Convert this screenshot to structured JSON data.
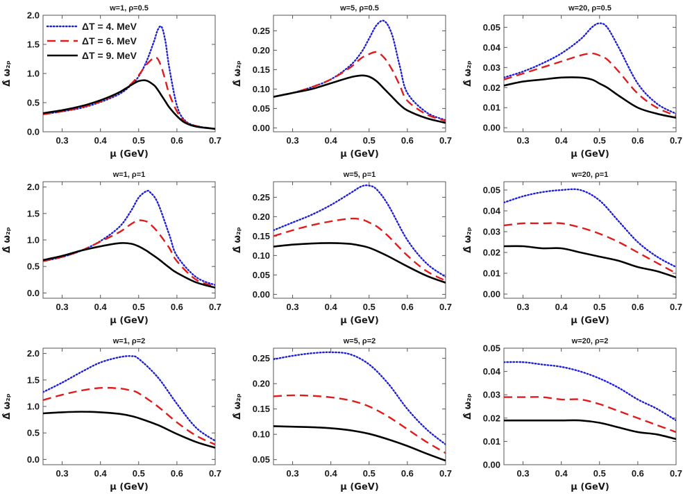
{
  "legend": [
    {
      "label": "ΔT = 4.  MeV",
      "color": "#1f1fd6",
      "style": "dotted"
    },
    {
      "label": "ΔT = 6.  MeV",
      "color": "#e01b1b",
      "style": "dashed"
    },
    {
      "label": "ΔT = 9.  MeV",
      "color": "#000000",
      "style": "solid"
    }
  ],
  "chart_data": [
    {
      "type": "line",
      "title": "w=1, ρ=0.5",
      "xlabel": "μ (GeV)",
      "ylabel": "Δ̂ ω₂ₚ",
      "xlim": [
        0.25,
        0.7
      ],
      "ylim": [
        0,
        2.0
      ],
      "xticks": [
        "0.3",
        "0.4",
        "0.5",
        "0.6",
        "0.7"
      ],
      "yticks": [
        "0.0",
        "0.5",
        "1.0",
        "1.5",
        "2.0"
      ],
      "legend": true,
      "x": [
        0.25,
        0.3,
        0.35,
        0.4,
        0.45,
        0.48,
        0.5,
        0.52,
        0.54,
        0.55,
        0.56,
        0.57,
        0.58,
        0.6,
        0.62,
        0.65,
        0.7
      ],
      "series": [
        {
          "name": "ΔT = 4.  MeV",
          "values": [
            0.3,
            0.35,
            0.41,
            0.51,
            0.65,
            0.8,
            0.95,
            1.2,
            1.55,
            1.75,
            1.8,
            1.55,
            1.1,
            0.45,
            0.2,
            0.1,
            0.05
          ]
        },
        {
          "name": "ΔT = 6.  MeV",
          "values": [
            0.3,
            0.35,
            0.42,
            0.52,
            0.68,
            0.82,
            0.97,
            1.15,
            1.27,
            1.25,
            1.1,
            0.88,
            0.65,
            0.35,
            0.18,
            0.1,
            0.05
          ]
        },
        {
          "name": "ΔT = 9.  MeV",
          "values": [
            0.32,
            0.37,
            0.44,
            0.54,
            0.68,
            0.8,
            0.87,
            0.88,
            0.8,
            0.72,
            0.62,
            0.52,
            0.42,
            0.27,
            0.16,
            0.09,
            0.05
          ]
        }
      ]
    },
    {
      "type": "line",
      "title": "w=5, ρ=0.5",
      "xlabel": "μ (GeV)",
      "ylabel": "Δ̂ ω₂ₚ",
      "xlim": [
        0.25,
        0.7
      ],
      "ylim": [
        -0.01,
        0.29
      ],
      "xticks": [
        "0.3",
        "0.4",
        "0.5",
        "0.6",
        "0.7"
      ],
      "yticks": [
        "0.00",
        "0.05",
        "0.10",
        "0.15",
        "0.20",
        "0.25"
      ],
      "legend": false,
      "x": [
        0.25,
        0.3,
        0.35,
        0.4,
        0.45,
        0.48,
        0.5,
        0.52,
        0.54,
        0.56,
        0.58,
        0.6,
        0.65,
        0.7
      ],
      "series": [
        {
          "name": "ΔT = 4.  MeV",
          "values": [
            0.08,
            0.09,
            0.105,
            0.125,
            0.16,
            0.195,
            0.23,
            0.265,
            0.275,
            0.24,
            0.16,
            0.09,
            0.04,
            0.02
          ]
        },
        {
          "name": "ΔT = 6.  MeV",
          "values": [
            0.08,
            0.09,
            0.105,
            0.125,
            0.155,
            0.18,
            0.19,
            0.195,
            0.18,
            0.15,
            0.11,
            0.07,
            0.035,
            0.018
          ]
        },
        {
          "name": "ΔT = 9.  MeV",
          "values": [
            0.08,
            0.09,
            0.1,
            0.115,
            0.13,
            0.135,
            0.132,
            0.12,
            0.1,
            0.08,
            0.06,
            0.045,
            0.025,
            0.013
          ]
        }
      ]
    },
    {
      "type": "line",
      "title": "w=20, ρ=0.5",
      "xlabel": "μ (GeV)",
      "ylabel": "Δ̂ ω₂ₚ",
      "xlim": [
        0.25,
        0.7
      ],
      "ylim": [
        -0.002,
        0.056
      ],
      "xticks": [
        "0.3",
        "0.4",
        "0.5",
        "0.6",
        "0.7"
      ],
      "yticks": [
        "0.00",
        "0.01",
        "0.02",
        "0.03",
        "0.04",
        "0.05"
      ],
      "legend": false,
      "x": [
        0.25,
        0.3,
        0.35,
        0.4,
        0.45,
        0.48,
        0.5,
        0.52,
        0.55,
        0.6,
        0.65,
        0.7
      ],
      "series": [
        {
          "name": "ΔT = 4.  MeV",
          "values": [
            0.025,
            0.028,
            0.032,
            0.037,
            0.044,
            0.05,
            0.052,
            0.05,
            0.04,
            0.022,
            0.012,
            0.007
          ]
        },
        {
          "name": "ΔT = 6.  MeV",
          "values": [
            0.024,
            0.027,
            0.03,
            0.033,
            0.036,
            0.037,
            0.036,
            0.034,
            0.028,
            0.017,
            0.01,
            0.006
          ]
        },
        {
          "name": "ΔT = 9.  MeV",
          "values": [
            0.021,
            0.023,
            0.024,
            0.025,
            0.025,
            0.024,
            0.022,
            0.02,
            0.016,
            0.01,
            0.007,
            0.005
          ]
        }
      ]
    },
    {
      "type": "line",
      "title": "w=1, ρ=1",
      "xlabel": "μ (GeV)",
      "ylabel": "Δ̂ ω₂ₚ",
      "xlim": [
        0.25,
        0.7
      ],
      "ylim": [
        -0.1,
        2.1
      ],
      "xticks": [
        "0.3",
        "0.4",
        "0.5",
        "0.6",
        "0.7"
      ],
      "yticks": [
        "0.0",
        "0.5",
        "1.0",
        "1.5",
        "2.0"
      ],
      "legend": false,
      "x": [
        0.25,
        0.3,
        0.35,
        0.4,
        0.45,
        0.48,
        0.5,
        0.52,
        0.53,
        0.55,
        0.58,
        0.6,
        0.65,
        0.7
      ],
      "series": [
        {
          "name": "ΔT = 4.  MeV",
          "values": [
            0.6,
            0.68,
            0.8,
            0.98,
            1.25,
            1.55,
            1.8,
            1.92,
            1.9,
            1.7,
            1.1,
            0.7,
            0.3,
            0.15
          ]
        },
        {
          "name": "ΔT = 6.  MeV",
          "values": [
            0.6,
            0.68,
            0.8,
            0.97,
            1.15,
            1.3,
            1.37,
            1.35,
            1.3,
            1.15,
            0.85,
            0.6,
            0.25,
            0.13
          ]
        },
        {
          "name": "ΔT = 9.  MeV",
          "values": [
            0.62,
            0.7,
            0.8,
            0.88,
            0.94,
            0.93,
            0.88,
            0.8,
            0.75,
            0.65,
            0.48,
            0.38,
            0.2,
            0.1
          ]
        }
      ]
    },
    {
      "type": "line",
      "title": "w=5, ρ=1",
      "xlabel": "μ (GeV)",
      "ylabel": "Δ̂ ω₂ₚ",
      "xlim": [
        0.25,
        0.7
      ],
      "ylim": [
        -0.01,
        0.29
      ],
      "xticks": [
        "0.3",
        "0.4",
        "0.5",
        "0.6",
        "0.7"
      ],
      "yticks": [
        "0.00",
        "0.05",
        "0.10",
        "0.15",
        "0.20",
        "0.25"
      ],
      "legend": false,
      "x": [
        0.25,
        0.3,
        0.35,
        0.4,
        0.45,
        0.48,
        0.5,
        0.52,
        0.55,
        0.6,
        0.65,
        0.7
      ],
      "series": [
        {
          "name": "ΔT = 4.  MeV",
          "values": [
            0.165,
            0.185,
            0.205,
            0.23,
            0.26,
            0.278,
            0.28,
            0.27,
            0.23,
            0.14,
            0.08,
            0.045
          ]
        },
        {
          "name": "ΔT = 6.  MeV",
          "values": [
            0.15,
            0.165,
            0.178,
            0.188,
            0.195,
            0.193,
            0.185,
            0.175,
            0.15,
            0.1,
            0.06,
            0.035
          ]
        },
        {
          "name": "ΔT = 9.  MeV",
          "values": [
            0.123,
            0.128,
            0.131,
            0.132,
            0.13,
            0.125,
            0.12,
            0.112,
            0.098,
            0.072,
            0.048,
            0.03
          ]
        }
      ]
    },
    {
      "type": "line",
      "title": "w=20, ρ=1",
      "xlabel": "μ (GeV)",
      "ylabel": "Δ̂ ω₂ₚ",
      "xlim": [
        0.25,
        0.7
      ],
      "ylim": [
        -0.002,
        0.054
      ],
      "xticks": [
        "0.3",
        "0.4",
        "0.5",
        "0.6",
        "0.7"
      ],
      "yticks": [
        "0.00",
        "0.01",
        "0.02",
        "0.03",
        "0.04",
        "0.05"
      ],
      "legend": false,
      "x": [
        0.25,
        0.3,
        0.35,
        0.4,
        0.45,
        0.5,
        0.55,
        0.6,
        0.65,
        0.7
      ],
      "series": [
        {
          "name": "ΔT = 4.  MeV",
          "values": [
            0.044,
            0.047,
            0.049,
            0.05,
            0.05,
            0.045,
            0.035,
            0.025,
            0.018,
            0.013
          ]
        },
        {
          "name": "ΔT = 6.  MeV",
          "values": [
            0.033,
            0.034,
            0.034,
            0.034,
            0.032,
            0.029,
            0.025,
            0.02,
            0.015,
            0.01
          ]
        },
        {
          "name": "ΔT = 9.  MeV",
          "values": [
            0.023,
            0.023,
            0.022,
            0.022,
            0.02,
            0.018,
            0.016,
            0.013,
            0.011,
            0.008
          ]
        }
      ]
    },
    {
      "type": "line",
      "title": "w=1, ρ=2",
      "xlabel": "μ (GeV)",
      "ylabel": "Δ̂ ω₂ₚ",
      "xlim": [
        0.25,
        0.7
      ],
      "ylim": [
        -0.1,
        2.1
      ],
      "xticks": [
        "0.3",
        "0.4",
        "0.5",
        "0.6",
        "0.7"
      ],
      "yticks": [
        "0.0",
        "0.5",
        "1.0",
        "1.5",
        "2.0"
      ],
      "legend": false,
      "x": [
        0.25,
        0.3,
        0.35,
        0.4,
        0.45,
        0.48,
        0.5,
        0.55,
        0.6,
        0.65,
        0.7
      ],
      "series": [
        {
          "name": "ΔT = 4.  MeV",
          "values": [
            1.27,
            1.45,
            1.65,
            1.83,
            1.93,
            1.95,
            1.9,
            1.55,
            1.05,
            0.6,
            0.35
          ]
        },
        {
          "name": "ΔT = 6.  MeV",
          "values": [
            1.12,
            1.22,
            1.3,
            1.35,
            1.34,
            1.3,
            1.25,
            1.0,
            0.7,
            0.45,
            0.28
          ]
        },
        {
          "name": "ΔT = 9.  MeV",
          "values": [
            0.87,
            0.89,
            0.9,
            0.89,
            0.86,
            0.82,
            0.78,
            0.65,
            0.48,
            0.33,
            0.22
          ]
        }
      ]
    },
    {
      "type": "line",
      "title": "w=5, ρ=2",
      "xlabel": "μ (GeV)",
      "ylabel": "Δ̂ ω₂ₚ",
      "xlim": [
        0.25,
        0.7
      ],
      "ylim": [
        0.04,
        0.27
      ],
      "xticks": [
        "0.3",
        "0.4",
        "0.5",
        "0.6",
        "0.7"
      ],
      "yticks": [
        "0.05",
        "0.10",
        "0.15",
        "0.20",
        "0.25"
      ],
      "legend": false,
      "x": [
        0.25,
        0.3,
        0.35,
        0.4,
        0.45,
        0.5,
        0.55,
        0.6,
        0.65,
        0.7
      ],
      "series": [
        {
          "name": "ΔT = 4.  MeV",
          "values": [
            0.248,
            0.255,
            0.26,
            0.262,
            0.258,
            0.238,
            0.2,
            0.15,
            0.11,
            0.08
          ]
        },
        {
          "name": "ΔT = 6.  MeV",
          "values": [
            0.175,
            0.177,
            0.176,
            0.173,
            0.167,
            0.155,
            0.135,
            0.11,
            0.085,
            0.063
          ]
        },
        {
          "name": "ΔT = 9.  MeV",
          "values": [
            0.116,
            0.115,
            0.114,
            0.112,
            0.108,
            0.101,
            0.09,
            0.077,
            0.062,
            0.048
          ]
        }
      ]
    },
    {
      "type": "line",
      "title": "w=20, ρ=2",
      "xlabel": "μ (GeV)",
      "ylabel": "Δ̂ ω₂ₚ",
      "xlim": [
        0.25,
        0.7
      ],
      "ylim": [
        0,
        0.05
      ],
      "xticks": [
        "0.3",
        "0.4",
        "0.5",
        "0.6",
        "0.7"
      ],
      "yticks": [
        "0.00",
        "0.01",
        "0.02",
        "0.03",
        "0.04",
        "0.05"
      ],
      "legend": false,
      "x": [
        0.25,
        0.3,
        0.35,
        0.4,
        0.45,
        0.5,
        0.55,
        0.6,
        0.65,
        0.7
      ],
      "series": [
        {
          "name": "ΔT = 4.  MeV",
          "values": [
            0.044,
            0.044,
            0.043,
            0.042,
            0.04,
            0.037,
            0.033,
            0.028,
            0.024,
            0.019
          ]
        },
        {
          "name": "ΔT = 6.  MeV",
          "values": [
            0.029,
            0.029,
            0.029,
            0.028,
            0.028,
            0.026,
            0.023,
            0.02,
            0.017,
            0.014
          ]
        },
        {
          "name": "ΔT = 9.  MeV",
          "values": [
            0.019,
            0.019,
            0.019,
            0.019,
            0.019,
            0.018,
            0.016,
            0.014,
            0.013,
            0.011
          ]
        }
      ]
    }
  ]
}
